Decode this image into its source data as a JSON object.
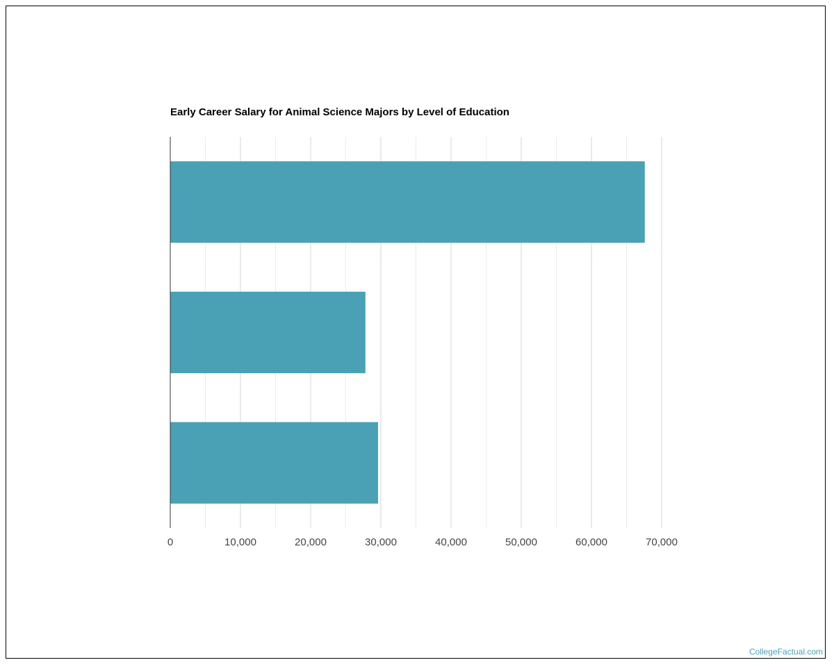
{
  "chart_data": {
    "type": "bar",
    "orientation": "horizontal",
    "title": "Early Career Salary for Animal Science Majors by Level of Education",
    "categories": [
      "",
      "",
      ""
    ],
    "values": [
      67600,
      27800,
      29600
    ],
    "xlim": [
      0,
      70000
    ],
    "ticks": [
      0,
      10000,
      20000,
      30000,
      40000,
      50000,
      60000,
      70000
    ],
    "tick_labels": [
      "0",
      "10,000",
      "20,000",
      "30,000",
      "40,000",
      "50,000",
      "60,000",
      "70,000"
    ],
    "grid": true,
    "bar_color": "#4aa0b5",
    "xlabel": "",
    "ylabel": ""
  },
  "footer": {
    "credit": "CollegeFactual.com"
  },
  "colors": {
    "bar": "#4aa0b5",
    "grid_major": "#d4d4d4",
    "grid_minor": "#ebebeb",
    "axis": "#333333",
    "credit": "#4aa0b5"
  }
}
